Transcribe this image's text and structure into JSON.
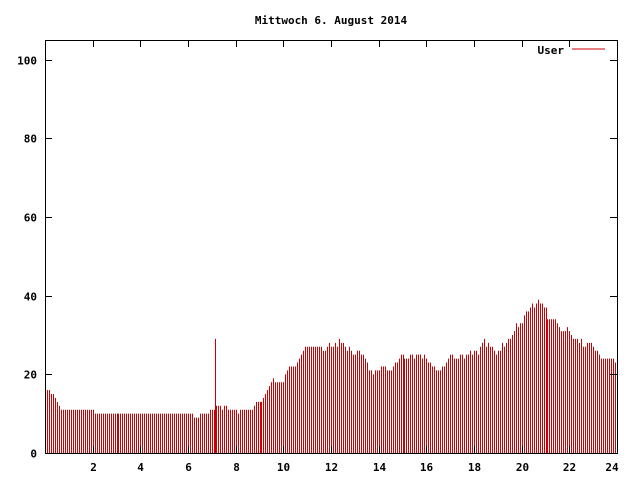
{
  "chart_data": {
    "type": "bar",
    "title": "Mittwoch 6. August 2014",
    "xlabel": "",
    "ylabel": "",
    "xlim": [
      0,
      24
    ],
    "ylim": [
      0,
      105
    ],
    "x_ticks": [
      2,
      4,
      6,
      8,
      10,
      12,
      14,
      16,
      18,
      20,
      22,
      24
    ],
    "y_ticks": [
      0,
      20,
      40,
      60,
      80,
      100
    ],
    "legend": "top-right",
    "grid": false,
    "colors": {
      "series": "#cc0000",
      "axis": "#000000",
      "background": "#ffffff"
    },
    "series": [
      {
        "name": "User",
        "points": [
          [
            0.0,
            16
          ],
          [
            0.083,
            16
          ],
          [
            0.167,
            16
          ],
          [
            0.25,
            15
          ],
          [
            0.333,
            15
          ],
          [
            0.417,
            14
          ],
          [
            0.5,
            13
          ],
          [
            0.583,
            12
          ],
          [
            0.667,
            11
          ],
          [
            0.75,
            11
          ],
          [
            0.833,
            11
          ],
          [
            0.917,
            11
          ],
          [
            1.0,
            11
          ],
          [
            1.083,
            11
          ],
          [
            1.167,
            11
          ],
          [
            1.25,
            11
          ],
          [
            1.333,
            11
          ],
          [
            1.417,
            11
          ],
          [
            1.5,
            11
          ],
          [
            1.583,
            11
          ],
          [
            1.667,
            11
          ],
          [
            1.75,
            11
          ],
          [
            1.833,
            11
          ],
          [
            1.917,
            11
          ],
          [
            2.0,
            11
          ],
          [
            2.083,
            10
          ],
          [
            2.167,
            10
          ],
          [
            2.25,
            10
          ],
          [
            2.333,
            10
          ],
          [
            2.417,
            10
          ],
          [
            2.5,
            10
          ],
          [
            2.583,
            10
          ],
          [
            2.667,
            10
          ],
          [
            2.75,
            10
          ],
          [
            2.833,
            10
          ],
          [
            2.917,
            10
          ],
          [
            3.0,
            10
          ],
          [
            3.083,
            10
          ],
          [
            3.167,
            10
          ],
          [
            3.25,
            10
          ],
          [
            3.333,
            10
          ],
          [
            3.417,
            10
          ],
          [
            3.5,
            10
          ],
          [
            3.583,
            10
          ],
          [
            3.667,
            10
          ],
          [
            3.75,
            10
          ],
          [
            3.833,
            10
          ],
          [
            3.917,
            10
          ],
          [
            4.0,
            10
          ],
          [
            4.083,
            10
          ],
          [
            4.167,
            10
          ],
          [
            4.25,
            10
          ],
          [
            4.333,
            10
          ],
          [
            4.417,
            10
          ],
          [
            4.5,
            10
          ],
          [
            4.583,
            10
          ],
          [
            4.667,
            10
          ],
          [
            4.75,
            10
          ],
          [
            4.833,
            10
          ],
          [
            4.917,
            10
          ],
          [
            5.0,
            10
          ],
          [
            5.083,
            10
          ],
          [
            5.167,
            10
          ],
          [
            5.25,
            10
          ],
          [
            5.333,
            10
          ],
          [
            5.417,
            10
          ],
          [
            5.5,
            10
          ],
          [
            5.583,
            10
          ],
          [
            5.667,
            10
          ],
          [
            5.75,
            10
          ],
          [
            5.833,
            10
          ],
          [
            5.917,
            10
          ],
          [
            6.0,
            10
          ],
          [
            6.083,
            10
          ],
          [
            6.167,
            10
          ],
          [
            6.25,
            9
          ],
          [
            6.333,
            9
          ],
          [
            6.417,
            9
          ],
          [
            6.5,
            10
          ],
          [
            6.583,
            10
          ],
          [
            6.667,
            10
          ],
          [
            6.75,
            10
          ],
          [
            6.833,
            10
          ],
          [
            6.917,
            11
          ],
          [
            7.0,
            11
          ],
          [
            7.083,
            11
          ],
          [
            7.125,
            29
          ],
          [
            7.167,
            12
          ],
          [
            7.25,
            12
          ],
          [
            7.333,
            12
          ],
          [
            7.417,
            11
          ],
          [
            7.5,
            12
          ],
          [
            7.583,
            12
          ],
          [
            7.667,
            11
          ],
          [
            7.75,
            11
          ],
          [
            7.833,
            11
          ],
          [
            7.917,
            11
          ],
          [
            8.0,
            11
          ],
          [
            8.083,
            10
          ],
          [
            8.167,
            11
          ],
          [
            8.25,
            11
          ],
          [
            8.333,
            11
          ],
          [
            8.417,
            11
          ],
          [
            8.5,
            11
          ],
          [
            8.583,
            11
          ],
          [
            8.667,
            11
          ],
          [
            8.75,
            12
          ],
          [
            8.833,
            13
          ],
          [
            8.917,
            13
          ],
          [
            9.0,
            13
          ],
          [
            9.083,
            13
          ],
          [
            9.167,
            14
          ],
          [
            9.25,
            15
          ],
          [
            9.333,
            16
          ],
          [
            9.417,
            17
          ],
          [
            9.5,
            18
          ],
          [
            9.583,
            19
          ],
          [
            9.667,
            18
          ],
          [
            9.75,
            18
          ],
          [
            9.833,
            18
          ],
          [
            9.917,
            18
          ],
          [
            10.0,
            18
          ],
          [
            10.083,
            20
          ],
          [
            10.167,
            21
          ],
          [
            10.25,
            22
          ],
          [
            10.333,
            22
          ],
          [
            10.417,
            22
          ],
          [
            10.5,
            22
          ],
          [
            10.583,
            23
          ],
          [
            10.667,
            24
          ],
          [
            10.75,
            25
          ],
          [
            10.833,
            26
          ],
          [
            10.917,
            27
          ],
          [
            11.0,
            27
          ],
          [
            11.083,
            27
          ],
          [
            11.167,
            27
          ],
          [
            11.25,
            27
          ],
          [
            11.333,
            27
          ],
          [
            11.417,
            27
          ],
          [
            11.5,
            27
          ],
          [
            11.583,
            27
          ],
          [
            11.667,
            26
          ],
          [
            11.75,
            26
          ],
          [
            11.833,
            27
          ],
          [
            11.917,
            28
          ],
          [
            12.0,
            27
          ],
          [
            12.083,
            27
          ],
          [
            12.167,
            28
          ],
          [
            12.25,
            27
          ],
          [
            12.333,
            29
          ],
          [
            12.417,
            28
          ],
          [
            12.5,
            28
          ],
          [
            12.583,
            27
          ],
          [
            12.667,
            26
          ],
          [
            12.75,
            27
          ],
          [
            12.833,
            26
          ],
          [
            12.917,
            25
          ],
          [
            13.0,
            25
          ],
          [
            13.083,
            26
          ],
          [
            13.167,
            26
          ],
          [
            13.25,
            25
          ],
          [
            13.333,
            25
          ],
          [
            13.417,
            24
          ],
          [
            13.5,
            23
          ],
          [
            13.583,
            21
          ],
          [
            13.667,
            21
          ],
          [
            13.75,
            20
          ],
          [
            13.833,
            21
          ],
          [
            13.917,
            21
          ],
          [
            14.0,
            21
          ],
          [
            14.083,
            22
          ],
          [
            14.167,
            22
          ],
          [
            14.25,
            22
          ],
          [
            14.333,
            21
          ],
          [
            14.417,
            21
          ],
          [
            14.5,
            21
          ],
          [
            14.583,
            22
          ],
          [
            14.667,
            23
          ],
          [
            14.75,
            23
          ],
          [
            14.833,
            24
          ],
          [
            14.917,
            25
          ],
          [
            15.0,
            25
          ],
          [
            15.083,
            24
          ],
          [
            15.167,
            24
          ],
          [
            15.25,
            24
          ],
          [
            15.333,
            25
          ],
          [
            15.417,
            25
          ],
          [
            15.5,
            24
          ],
          [
            15.583,
            25
          ],
          [
            15.667,
            25
          ],
          [
            15.75,
            25
          ],
          [
            15.833,
            24
          ],
          [
            15.917,
            25
          ],
          [
            16.0,
            24
          ],
          [
            16.083,
            23
          ],
          [
            16.167,
            23
          ],
          [
            16.25,
            22
          ],
          [
            16.333,
            22
          ],
          [
            16.417,
            21
          ],
          [
            16.5,
            21
          ],
          [
            16.583,
            21
          ],
          [
            16.667,
            22
          ],
          [
            16.75,
            22
          ],
          [
            16.833,
            23
          ],
          [
            16.917,
            24
          ],
          [
            17.0,
            25
          ],
          [
            17.083,
            25
          ],
          [
            17.167,
            24
          ],
          [
            17.25,
            24
          ],
          [
            17.333,
            24
          ],
          [
            17.417,
            25
          ],
          [
            17.5,
            25
          ],
          [
            17.583,
            24
          ],
          [
            17.667,
            25
          ],
          [
            17.75,
            25
          ],
          [
            17.833,
            26
          ],
          [
            17.917,
            25
          ],
          [
            18.0,
            26
          ],
          [
            18.083,
            26
          ],
          [
            18.167,
            25
          ],
          [
            18.25,
            27
          ],
          [
            18.333,
            28
          ],
          [
            18.417,
            29
          ],
          [
            18.5,
            27
          ],
          [
            18.583,
            28
          ],
          [
            18.667,
            27
          ],
          [
            18.75,
            27
          ],
          [
            18.833,
            26
          ],
          [
            18.917,
            25
          ],
          [
            19.0,
            26
          ],
          [
            19.083,
            26
          ],
          [
            19.167,
            28
          ],
          [
            19.25,
            27
          ],
          [
            19.333,
            28
          ],
          [
            19.417,
            29
          ],
          [
            19.5,
            29
          ],
          [
            19.583,
            30
          ],
          [
            19.667,
            31
          ],
          [
            19.75,
            33
          ],
          [
            19.833,
            32
          ],
          [
            19.917,
            33
          ],
          [
            20.0,
            33
          ],
          [
            20.083,
            35
          ],
          [
            20.167,
            36
          ],
          [
            20.25,
            36
          ],
          [
            20.333,
            37
          ],
          [
            20.417,
            38
          ],
          [
            20.5,
            37
          ],
          [
            20.583,
            38
          ],
          [
            20.667,
            39
          ],
          [
            20.75,
            38
          ],
          [
            20.833,
            38
          ],
          [
            20.917,
            37
          ],
          [
            21.0,
            37
          ],
          [
            21.083,
            34
          ],
          [
            21.167,
            34
          ],
          [
            21.25,
            34
          ],
          [
            21.333,
            34
          ],
          [
            21.417,
            34
          ],
          [
            21.5,
            33
          ],
          [
            21.583,
            32
          ],
          [
            21.667,
            31
          ],
          [
            21.75,
            31
          ],
          [
            21.833,
            31
          ],
          [
            21.917,
            32
          ],
          [
            22.0,
            31
          ],
          [
            22.083,
            30
          ],
          [
            22.167,
            29
          ],
          [
            22.25,
            29
          ],
          [
            22.333,
            29
          ],
          [
            22.417,
            28
          ],
          [
            22.5,
            29
          ],
          [
            22.583,
            27
          ],
          [
            22.667,
            27
          ],
          [
            22.75,
            28
          ],
          [
            22.833,
            28
          ],
          [
            22.917,
            28
          ],
          [
            23.0,
            27
          ],
          [
            23.083,
            26
          ],
          [
            23.167,
            26
          ],
          [
            23.25,
            25
          ],
          [
            23.333,
            24
          ],
          [
            23.417,
            24
          ],
          [
            23.5,
            24
          ],
          [
            23.583,
            24
          ],
          [
            23.667,
            24
          ],
          [
            23.75,
            24
          ],
          [
            23.833,
            24
          ],
          [
            23.917,
            23
          ]
        ]
      }
    ]
  }
}
